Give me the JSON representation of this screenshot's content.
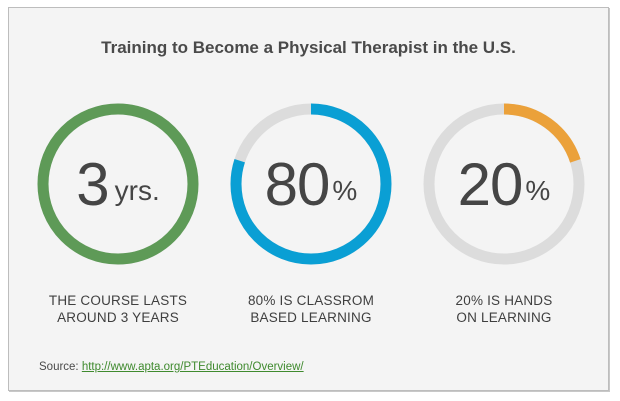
{
  "title": "Training to Become a Physical Therapist in the U.S.",
  "chart_data": {
    "type": "donut",
    "track_color": "#dcdcdc",
    "items": [
      {
        "value": 3,
        "number": "3",
        "unit": "yrs.",
        "fraction": 1.0,
        "color": "#5e9a57",
        "caption": [
          "THE COURSE LASTS",
          "AROUND 3 YEARS"
        ]
      },
      {
        "value": 80,
        "number": "80",
        "unit": "%",
        "fraction": 0.8,
        "color": "#0a9fd4",
        "caption": [
          "80% IS CLASSROM",
          "BASED LEARNING"
        ]
      },
      {
        "value": 20,
        "number": "20",
        "unit": "%",
        "fraction": 0.2,
        "color": "#eba13a",
        "caption": [
          "20% IS HANDS",
          "ON LEARNING"
        ]
      }
    ]
  },
  "source": {
    "label": "Source: ",
    "url": "http://www.apta.org/PTEducation/Overview/"
  }
}
